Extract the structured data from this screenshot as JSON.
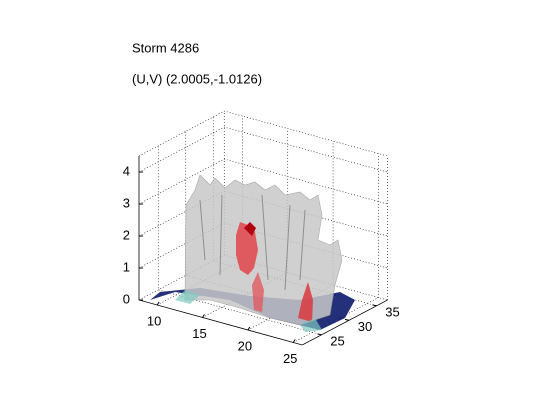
{
  "chart_data": {
    "type": "isosurface",
    "title": "Storm 4286",
    "subtitle": "(U,V) (2.0005,-1.0126)",
    "xlim": [
      8,
      26
    ],
    "ylim": [
      21.5,
      37
    ],
    "zlim": [
      0,
      4.5
    ],
    "xticks": [
      10,
      15,
      20,
      25
    ],
    "yticks": [
      25,
      30,
      35
    ],
    "zticks": [
      0,
      1,
      2,
      3,
      4
    ],
    "grid": true
  }
}
